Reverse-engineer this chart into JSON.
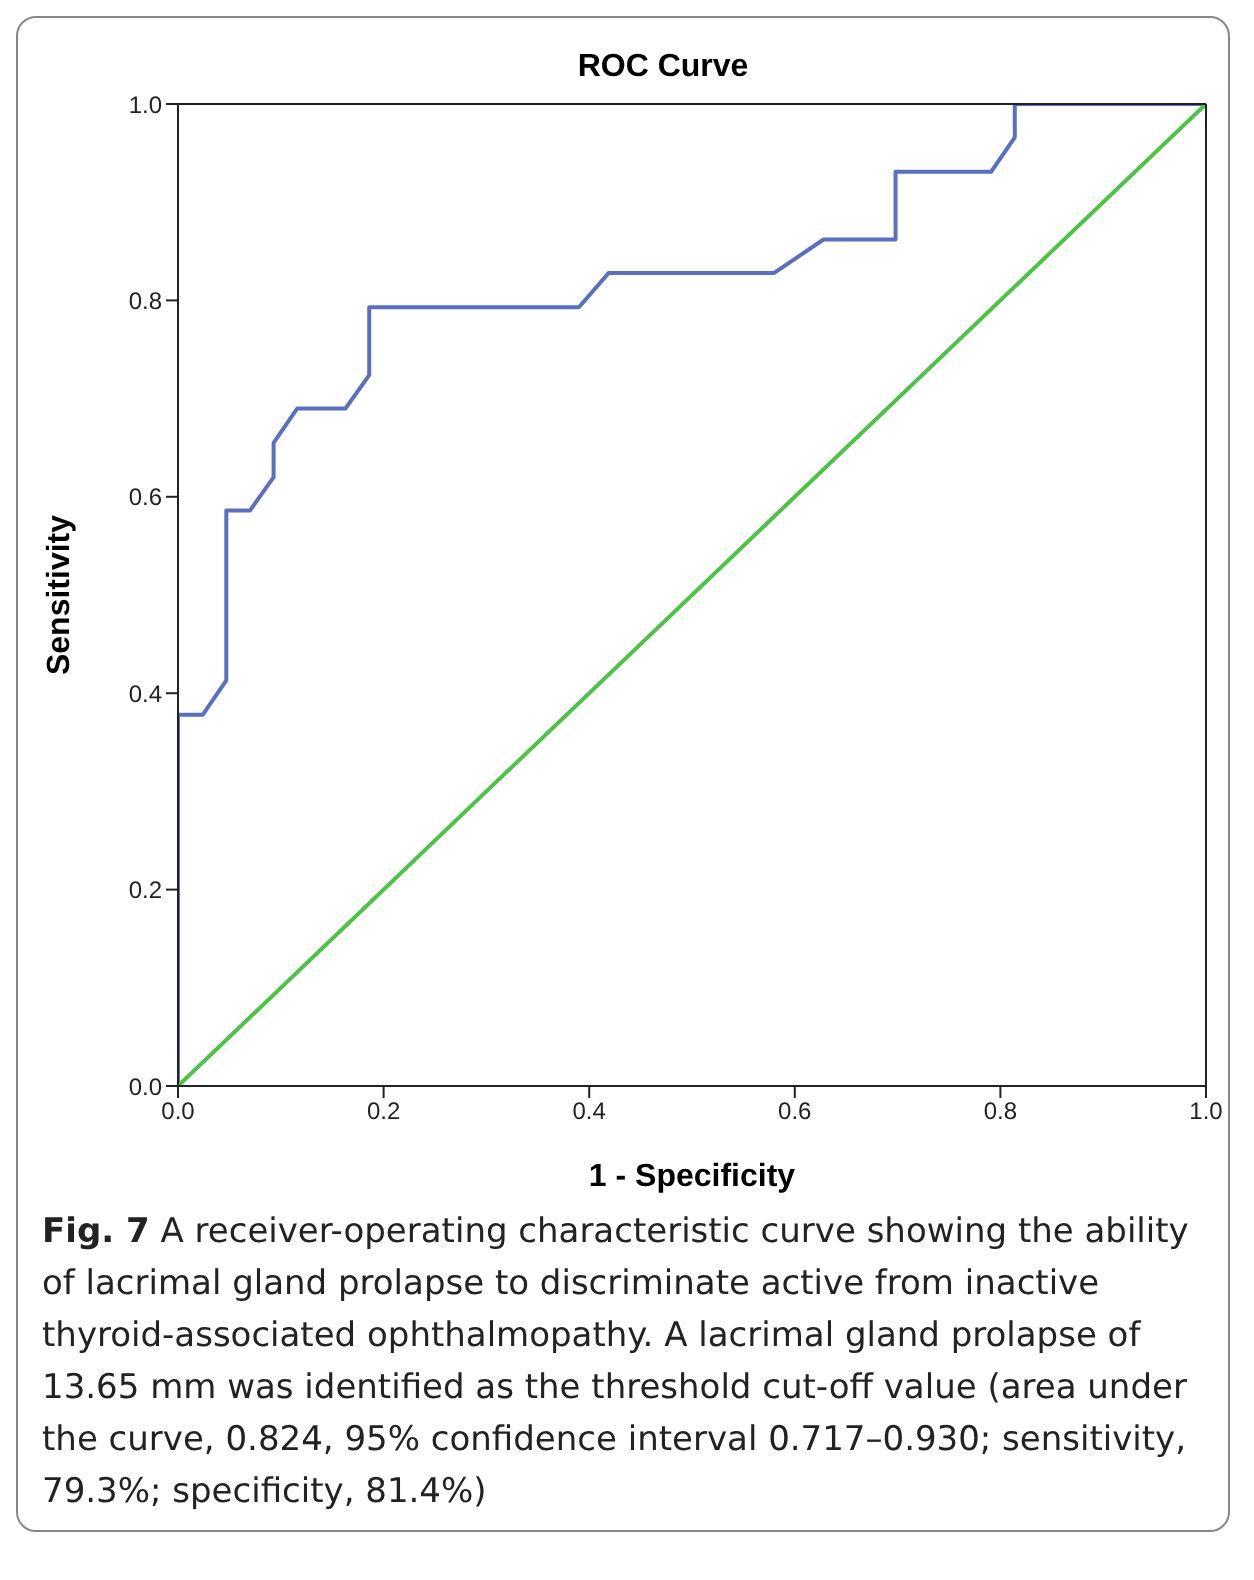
{
  "chart_data": {
    "type": "line",
    "title": "ROC Curve",
    "xlabel": "1 - Specificity",
    "ylabel": "Sensitivity",
    "annotations": [
      "Fig. 7",
      "A receiver-operating characteristic curve showing the ability of lacrimal gland prolapse to discriminate active from inactive thyroid-associated ophthalmopathy. A lacrimal gland prolapse of 13.65 mm was identified as the threshold cut-off value (area under the curve, 0.824, 95% confidence interval 0.717–0.930; sensitivity, 79.3%; specificity, 81.4%)"
    ],
    "series": [
      {
        "color": "#5b6fbf",
        "x": [
          0,
          0,
          0.024,
          0.047,
          0.047,
          0.07,
          0.093,
          0.093,
          0.116,
          0.163,
          0.186,
          0.186,
          0.39,
          0.419,
          0.58,
          0.628,
          0.698,
          0.698,
          0.791,
          0.814,
          0.814,
          1
        ],
        "values": [
          0,
          0.378,
          0.378,
          0.413,
          0.586,
          0.586,
          0.62,
          0.655,
          0.69,
          0.69,
          0.724,
          0.793,
          0.793,
          0.828,
          0.828,
          0.862,
          0.862,
          0.931,
          0.931,
          0.966,
          1,
          1
        ]
      },
      {
        "color": "#4dc247",
        "x": [
          0,
          1
        ],
        "values": [
          0,
          1
        ]
      }
    ],
    "xlim": [
      0,
      1
    ],
    "ylim": [
      0,
      1
    ],
    "xticks": [
      {
        "value": 0,
        "label": "0.0"
      },
      0.2,
      0.4,
      0.6,
      0.8,
      {
        "value": 1,
        "label": "1.0"
      }
    ],
    "yticks": [
      {
        "value": 0,
        "label": "0.0"
      },
      0.2,
      0.4,
      0.6,
      0.8,
      {
        "value": 1,
        "label": "1.0"
      }
    ],
    "grid": false,
    "legend": false,
    "marker": "none",
    "line_style": "solid"
  }
}
